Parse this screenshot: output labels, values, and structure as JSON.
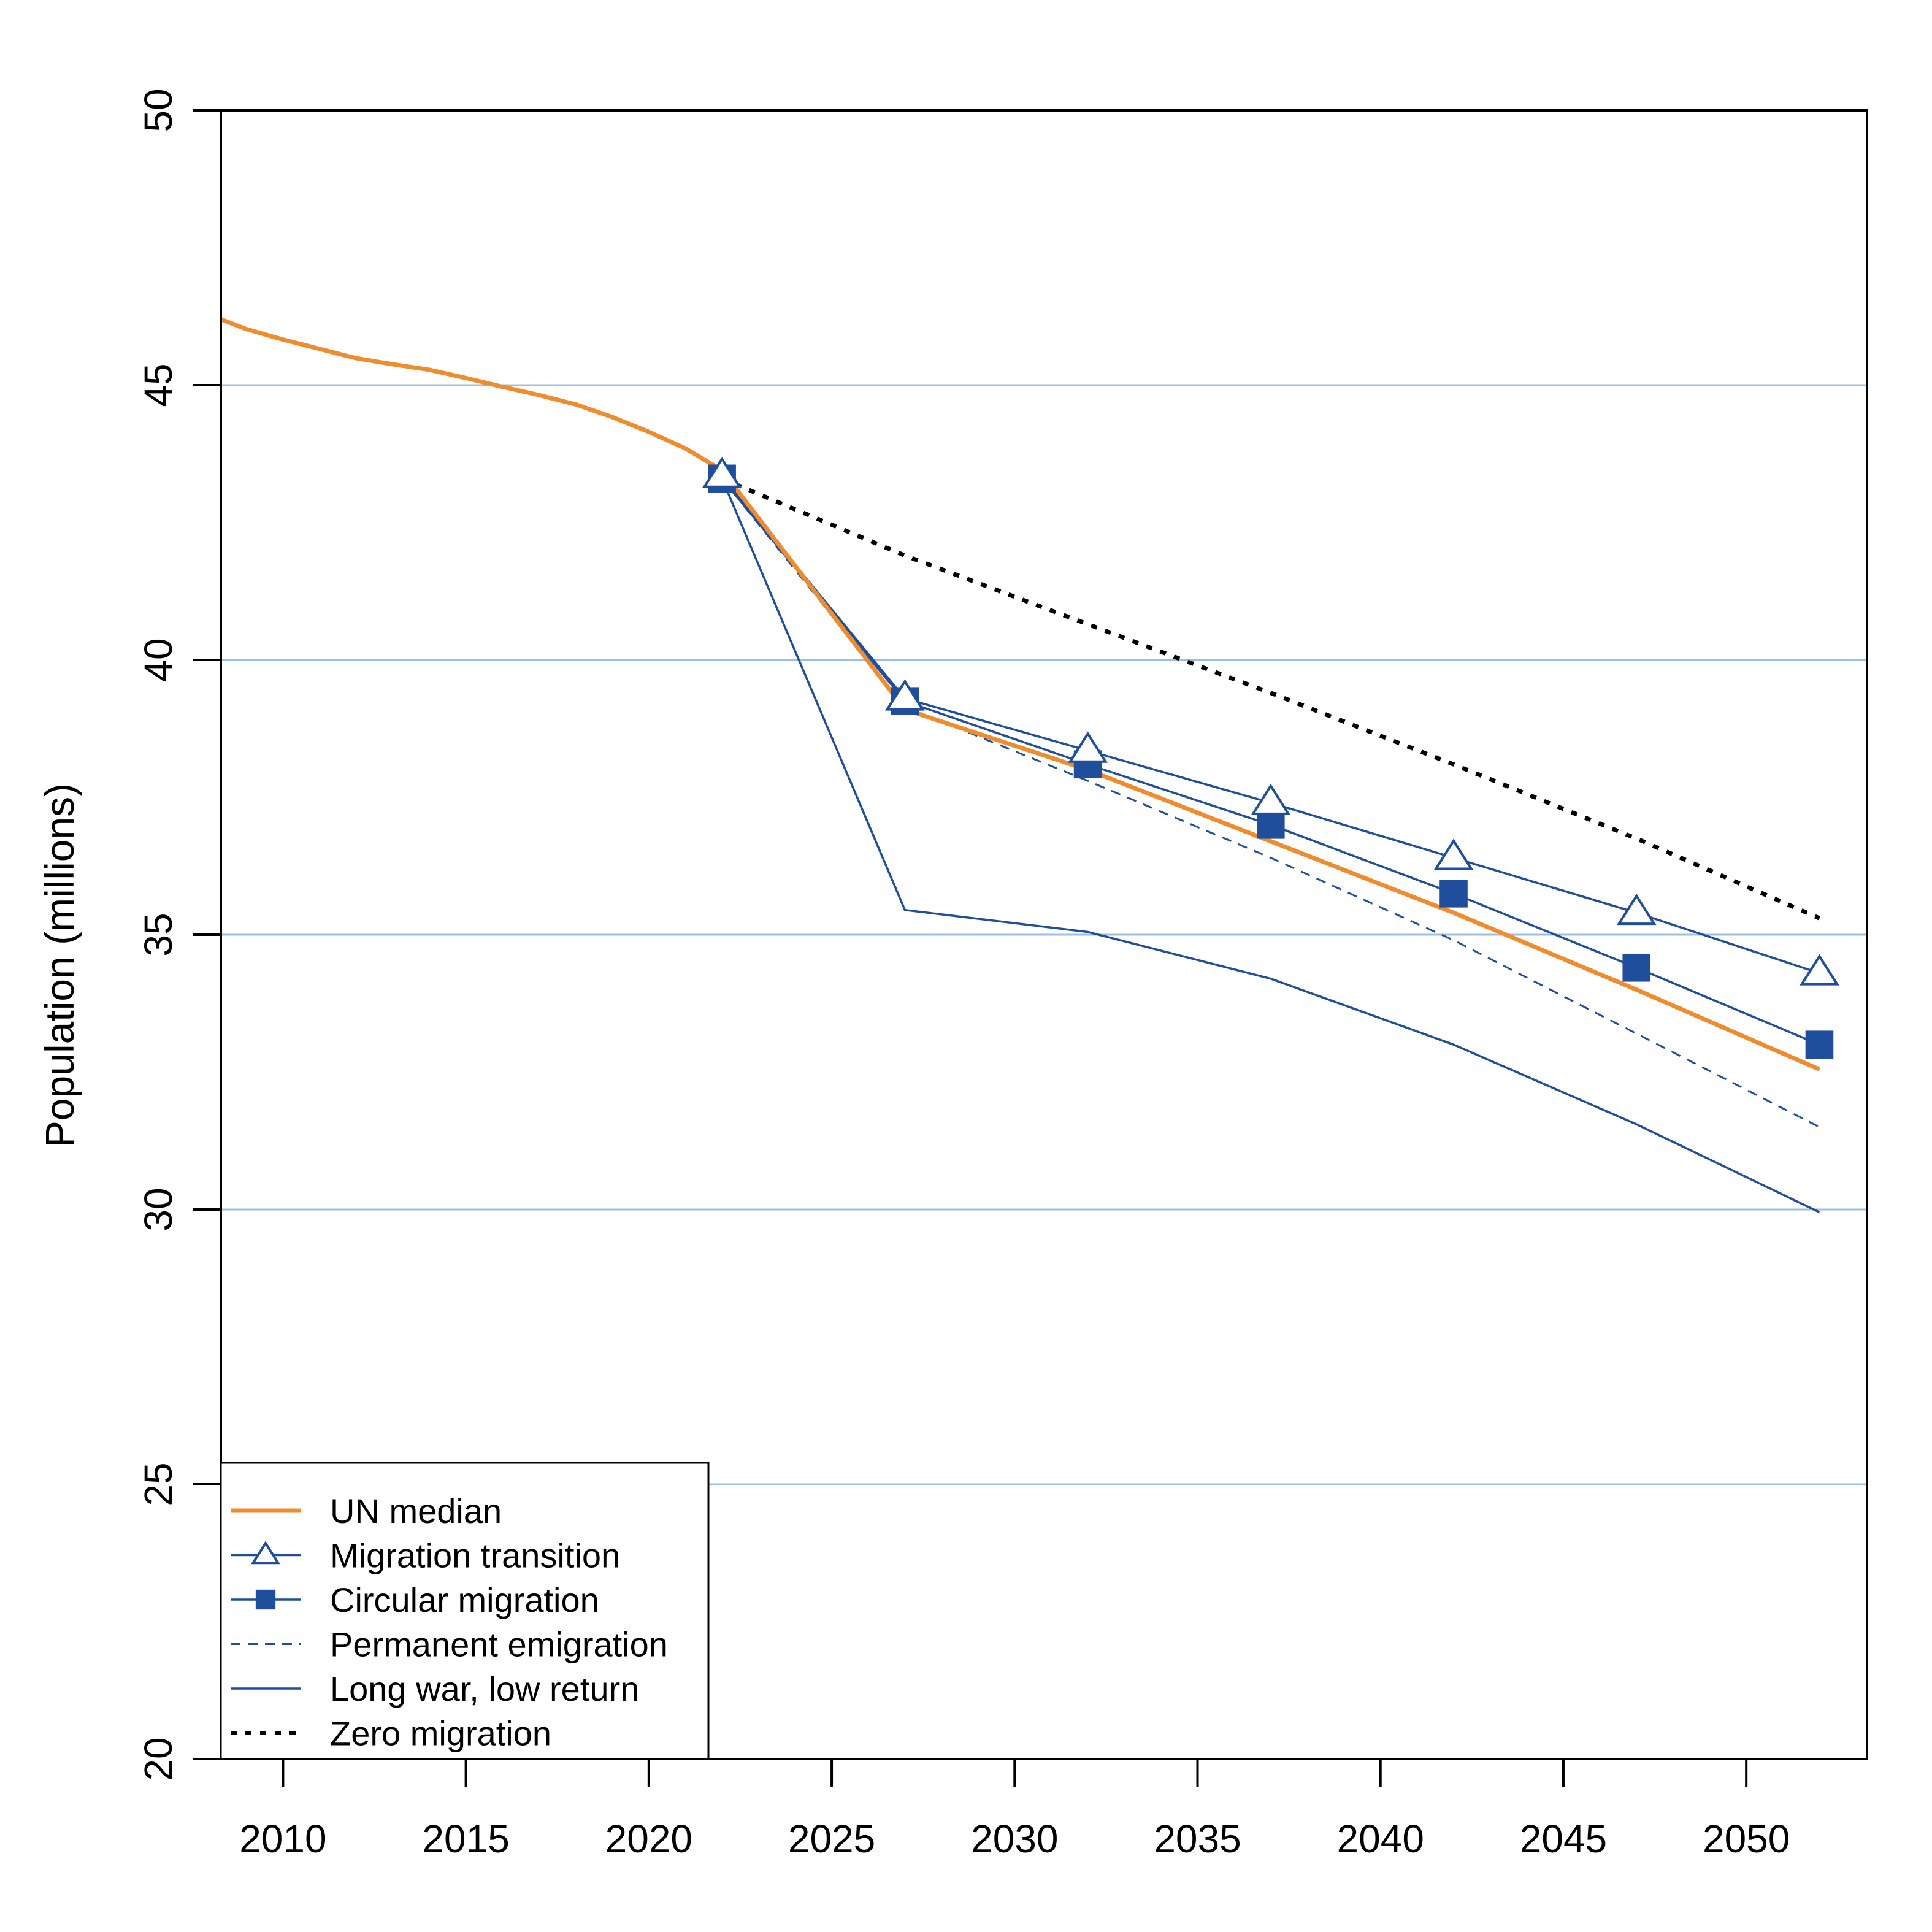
{
  "chart_data": {
    "type": "line",
    "xlabel": "",
    "ylabel": "Population (millions)",
    "xlim": [
      2008.3,
      2053.3
    ],
    "ylim": [
      20,
      50
    ],
    "x_ticks": [
      2010,
      2015,
      2020,
      2025,
      2030,
      2035,
      2040,
      2045,
      2050
    ],
    "y_ticks": [
      20,
      25,
      30,
      35,
      40,
      45,
      50
    ],
    "grid": "horizontal",
    "legend_position": "bottom-left",
    "colors": {
      "orange": "#f08c2e",
      "blue": "#1f4e9c",
      "black": "#000000",
      "grid": "#9dbfe3"
    },
    "series": [
      {
        "name": "UN median",
        "style": "solid-thick",
        "color": "#f08c2e",
        "marker": "none",
        "x": [
          2008.3,
          2009,
          2010,
          2011,
          2012,
          2013,
          2014,
          2015,
          2016,
          2017,
          2018,
          2019,
          2020,
          2021,
          2022,
          2027,
          2032,
          2037,
          2042,
          2047,
          2052
        ],
        "y": [
          46.2,
          46.02,
          45.83,
          45.66,
          45.49,
          45.38,
          45.28,
          45.13,
          44.97,
          44.82,
          44.65,
          44.42,
          44.15,
          43.85,
          43.45,
          39.1,
          38.0,
          36.7,
          35.4,
          34.0,
          32.55
        ]
      },
      {
        "name": "Migration transition",
        "style": "solid",
        "color": "#1f4e9c",
        "marker": "triangle-open",
        "x": [
          2022,
          2027,
          2032,
          2037,
          2042,
          2047,
          2052
        ],
        "y": [
          43.35,
          39.3,
          38.35,
          37.4,
          36.4,
          35.4,
          34.3
        ]
      },
      {
        "name": "Circular migration",
        "style": "solid",
        "color": "#1f4e9c",
        "marker": "square-filled",
        "x": [
          2022,
          2027,
          2032,
          2037,
          2042,
          2047,
          2052
        ],
        "y": [
          43.3,
          39.25,
          38.1,
          37.0,
          35.75,
          34.4,
          33.0
        ]
      },
      {
        "name": "Permanent emigration",
        "style": "dashed",
        "color": "#1f4e9c",
        "marker": "none",
        "x": [
          2022,
          2027,
          2032,
          2037,
          2042,
          2047,
          2052
        ],
        "y": [
          43.3,
          39.15,
          37.8,
          36.4,
          34.9,
          33.2,
          31.5
        ]
      },
      {
        "name": "Long war, low return",
        "style": "solid-thin",
        "color": "#1f4e9c",
        "marker": "none",
        "x": [
          2022,
          2027,
          2032,
          2037,
          2042,
          2047,
          2052
        ],
        "y": [
          43.3,
          35.45,
          35.05,
          34.2,
          33.0,
          31.55,
          29.95
        ]
      },
      {
        "name": "Zero migration",
        "style": "dotted",
        "color": "#000000",
        "marker": "none",
        "x": [
          2022,
          2027,
          2032,
          2037,
          2042,
          2047,
          2052
        ],
        "y": [
          43.3,
          41.9,
          40.65,
          39.4,
          38.1,
          36.75,
          35.3
        ]
      }
    ]
  }
}
